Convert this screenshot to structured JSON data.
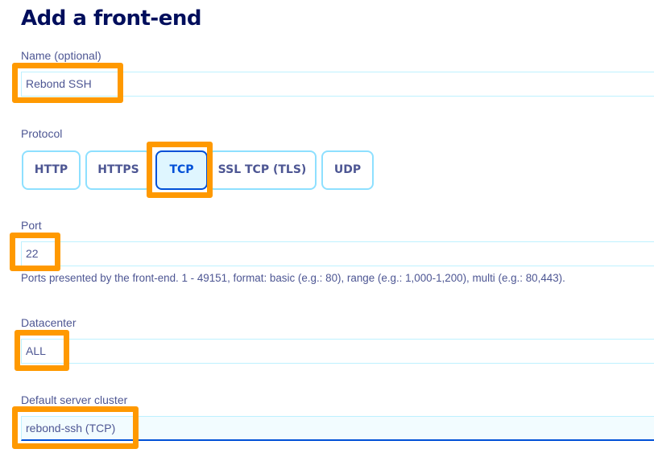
{
  "title": "Add a front-end",
  "name_field": {
    "label": "Name (optional)",
    "value": "Rebond SSH"
  },
  "protocol": {
    "label": "Protocol",
    "options": [
      "HTTP",
      "HTTPS",
      "TCP",
      "SSL TCP (TLS)",
      "UDP"
    ],
    "selected": "TCP"
  },
  "port_field": {
    "label": "Port",
    "value": "22",
    "help": "Ports presented by the front-end. 1 - 49151, format: basic (e.g.: 80), range (e.g.: 1,000-1,200), multi (e.g.: 80,443)."
  },
  "datacenter_field": {
    "label": "Datacenter",
    "value": "ALL"
  },
  "cluster_field": {
    "label": "Default server cluster",
    "value": "rebond-ssh (TCP)"
  },
  "colors": {
    "highlight": "#ff9900",
    "accent": "#0050d7",
    "title": "#000e5c"
  }
}
